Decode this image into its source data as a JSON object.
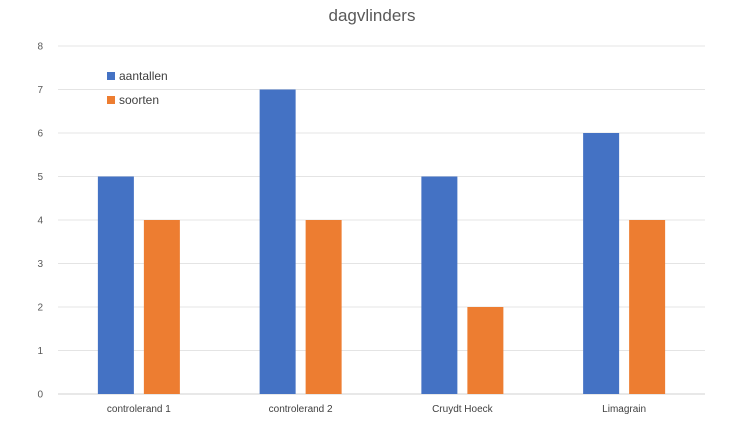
{
  "chart_data": {
    "type": "bar",
    "title": "dagvlinders",
    "categories": [
      "controlerand 1",
      "controlerand 2",
      "Cruydt Hoeck",
      "Limagrain"
    ],
    "series": [
      {
        "name": "aantallen",
        "values": [
          5,
          7,
          5,
          6
        ],
        "color": "#4472C4"
      },
      {
        "name": "soorten",
        "values": [
          4,
          4,
          2,
          4
        ],
        "color": "#ED7D31"
      }
    ],
    "ylim": [
      0,
      8
    ],
    "yticks": [
      0,
      1,
      2,
      3,
      4,
      5,
      6,
      7,
      8
    ],
    "grid": true,
    "legend": "top-left"
  }
}
